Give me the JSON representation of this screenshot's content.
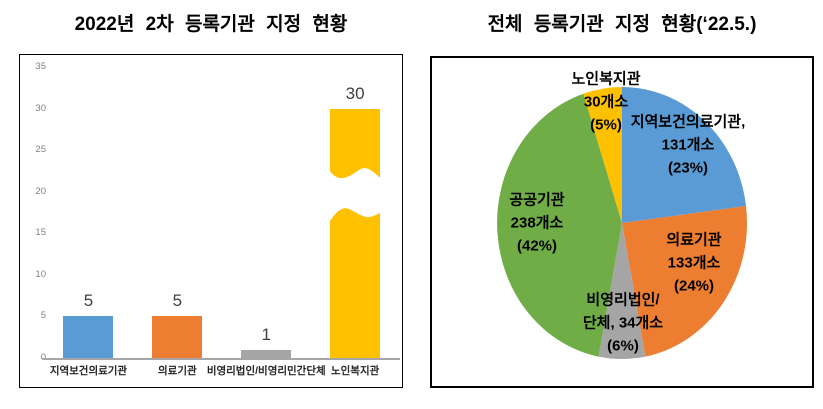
{
  "chart_data": [
    {
      "type": "bar",
      "title": "2022년 2차 등록기관 지정 현황",
      "categories": [
        "지역보건의료기관",
        "의료기관",
        "비영리법인/비영리민간단체",
        "노인복지관"
      ],
      "values": [
        5,
        5,
        1,
        30
      ],
      "value_labels": [
        "5",
        "5",
        "1",
        "30"
      ],
      "colors": [
        "#5B9BD5",
        "#ED7D31",
        "#A5A5A5",
        "#FFC000"
      ],
      "ylabel": "",
      "xlabel": "",
      "ylim": [
        0,
        35
      ],
      "yticks": [
        "0",
        "5",
        "10",
        "15",
        "20",
        "25",
        "30",
        "35"
      ],
      "grid": false,
      "legend": false,
      "axis_break": {
        "bar_index": 3,
        "break_between_values": [
          17,
          22
        ]
      }
    },
    {
      "type": "pie",
      "title": "전체 등록기관 지정 현황(‘22.5.)",
      "start_angle": "12-oclock",
      "direction": "clockwise",
      "slices": [
        {
          "name": "지역보건의료기관",
          "count": 131,
          "percent": 23,
          "color": "#5B9BD5",
          "label_lines": [
            "지역보건의료기관,",
            "131개소",
            "(23%)"
          ],
          "label_pos": [
            256,
            87
          ]
        },
        {
          "name": "의료기관",
          "count": 133,
          "percent": 24,
          "color": "#ED7D31",
          "label_lines": [
            "의료기관",
            "133개소",
            "(24%)"
          ],
          "label_pos": [
            262,
            205
          ]
        },
        {
          "name": "비영리법인/단체",
          "count": 34,
          "percent": 6,
          "color": "#A5A5A5",
          "label_lines": [
            "비영리법인/",
            "단체, 34개소",
            "(6%)"
          ],
          "label_pos": [
            191,
            265
          ]
        },
        {
          "name": "공공기관",
          "count": 238,
          "percent": 42,
          "color": "#70AD47",
          "label_lines": [
            "공공기관",
            "238개소",
            "(42%)"
          ],
          "label_pos": [
            105,
            165
          ]
        },
        {
          "name": "노인복지관",
          "count": 30,
          "percent": 5,
          "color": "#FFC000",
          "label_lines": [
            "노인복지관",
            "30개소",
            "(5%)"
          ],
          "label_pos": [
            174,
            44
          ]
        }
      ]
    }
  ]
}
